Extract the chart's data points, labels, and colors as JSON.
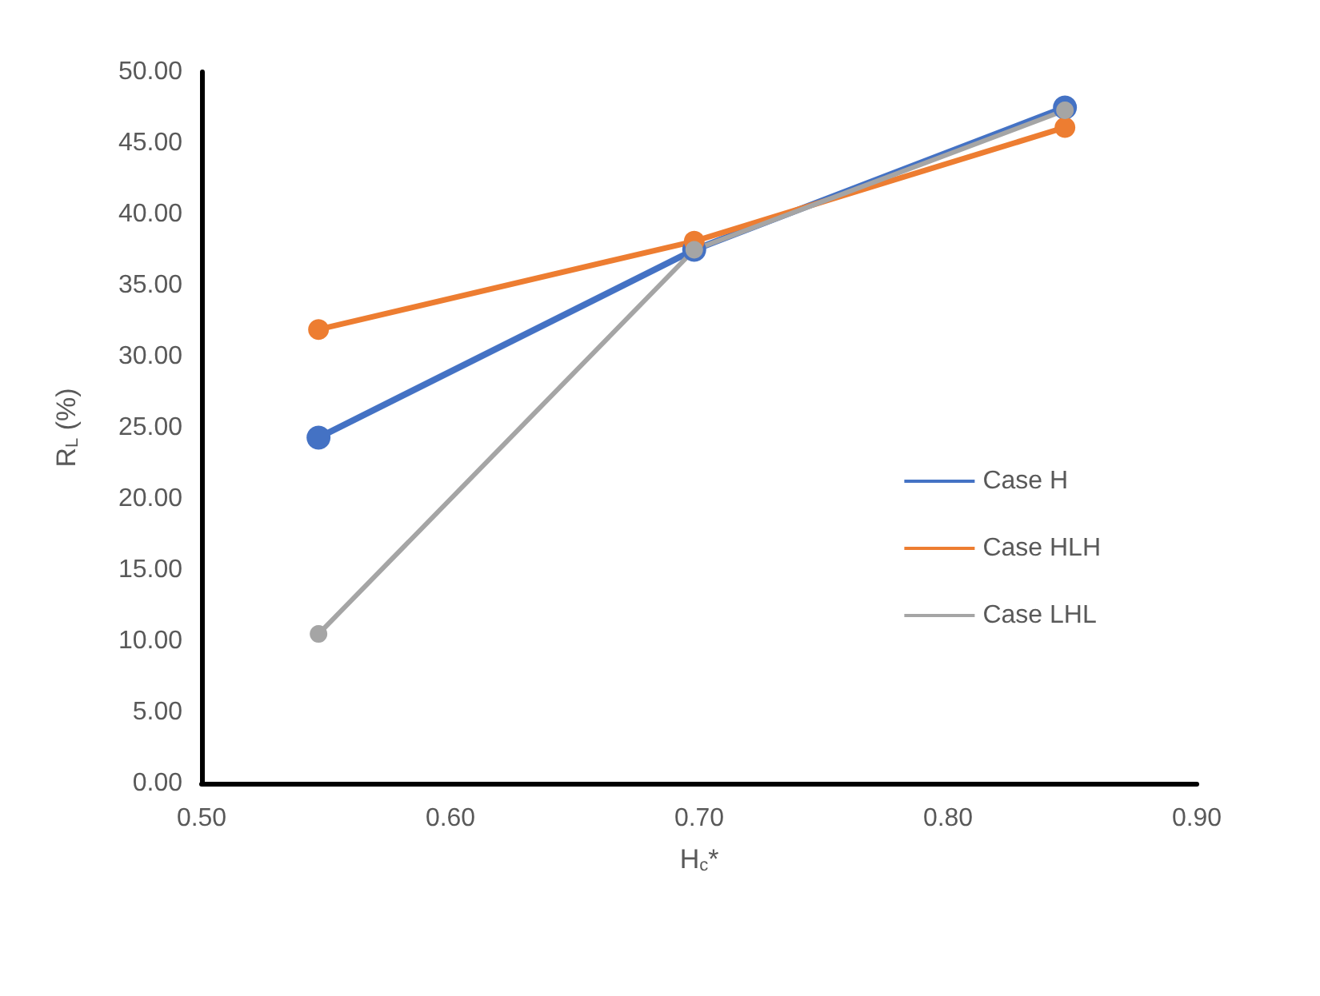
{
  "chart_data": {
    "type": "line",
    "xlabel": "H$_{c}$*",
    "ylabel": "R$_{L}$ (%)",
    "xlim": [
      0.5,
      0.9
    ],
    "xticks": [
      {
        "value": 0.5,
        "label": "0.50"
      },
      {
        "value": 0.6,
        "label": "0.60"
      },
      {
        "value": 0.7,
        "label": "0.70"
      },
      {
        "value": 0.8,
        "label": "0.80"
      },
      {
        "value": 0.9,
        "label": "0.90"
      }
    ],
    "ylim": [
      0,
      50
    ],
    "yticks": [
      {
        "value": 0,
        "label": "0.00"
      },
      {
        "value": 5,
        "label": "5.00"
      },
      {
        "value": 10,
        "label": "10.00"
      },
      {
        "value": 15,
        "label": "15.00"
      },
      {
        "value": 20,
        "label": "20.00"
      },
      {
        "value": 25,
        "label": "25.00"
      },
      {
        "value": 30,
        "label": "30.00"
      },
      {
        "value": 35,
        "label": "35.00"
      },
      {
        "value": 40,
        "label": "40.00"
      },
      {
        "value": 45,
        "label": "45.00"
      },
      {
        "value": 50,
        "label": "50.00"
      }
    ],
    "x": [
      0.547,
      0.698,
      0.847
    ],
    "series": [
      {
        "name": "Case H",
        "color": "#4472c4",
        "values": [
          24.3,
          37.5,
          47.5
        ]
      },
      {
        "name": "Case HLH",
        "color": "#ed7d31",
        "values": [
          31.9,
          38.1,
          46.1
        ]
      },
      {
        "name": "Case LHL",
        "color": "#a5a5a5",
        "values": [
          10.5,
          37.5,
          47.3
        ]
      }
    ],
    "grid": false,
    "legend": "right",
    "marker": "circle",
    "line_style": "solid"
  }
}
